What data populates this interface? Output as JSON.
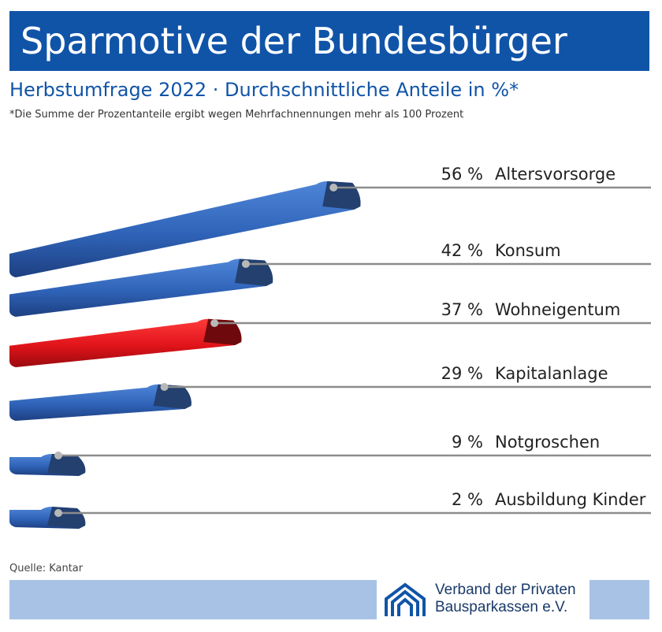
{
  "header": {
    "title": "Sparmotive der Bundesbürger",
    "subtitle": "Herbstumfrage 2022 · Durchschnittliche Anteile in %*",
    "footnote": "*Die Summe der Prozentanteile ergibt wegen Mehrfachnennungen mehr als 100 Prozent"
  },
  "colors": {
    "brand_blue": "#1054a8",
    "bar_blue": "#3a6fc4",
    "bar_red": "#e8161b",
    "footer_band": "#a8c2e6"
  },
  "chart_data": {
    "type": "bar",
    "categories": [
      "Altersvorsorge",
      "Konsum",
      "Wohneigentum",
      "Kapitalanlage",
      "Notgroschen",
      "Ausbildung Kinder"
    ],
    "values": [
      56,
      42,
      37,
      29,
      9,
      2
    ],
    "value_labels": [
      "56 %",
      "42 %",
      "37 %",
      "29 %",
      "9 %",
      "2 %"
    ],
    "highlighted_category": "Wohneigentum",
    "unit": "%",
    "orientation": "horizontal",
    "grid": false,
    "legend": "none"
  },
  "footer": {
    "source": "Quelle: Kantar",
    "org_line1": "Verband der Privaten",
    "org_line2": "Bausparkassen e.V."
  }
}
